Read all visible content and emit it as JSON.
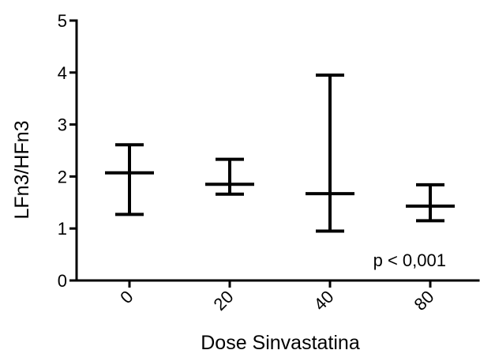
{
  "chart_data": {
    "type": "error-bar",
    "title": "",
    "xlabel": "Dose Sinvastatina",
    "ylabel": "LFn3/HFn3",
    "categories": [
      "0",
      "20",
      "40",
      "80"
    ],
    "center": [
      2.07,
      1.85,
      1.67,
      1.43
    ],
    "lower": [
      1.27,
      1.66,
      0.95,
      1.15
    ],
    "upper": [
      2.61,
      2.33,
      3.95,
      1.84
    ],
    "ylim": [
      0,
      5
    ],
    "yticks": [
      "0",
      "1",
      "2",
      "3",
      "4",
      "5"
    ],
    "grid": false,
    "annotation": "p < 0,001"
  }
}
